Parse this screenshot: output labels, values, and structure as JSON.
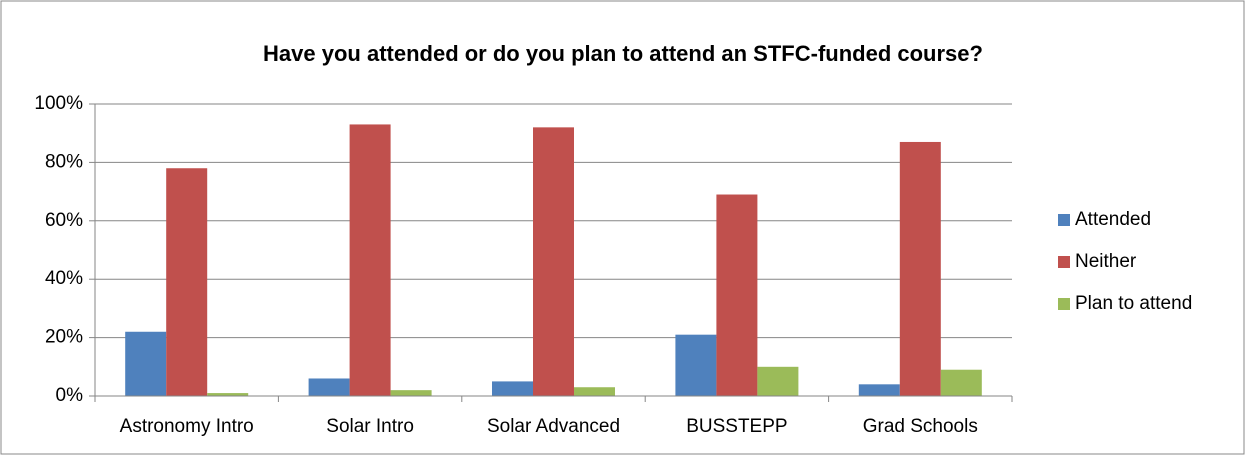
{
  "chart_data": {
    "type": "bar",
    "title": "Have you attended or do you plan to attend an STFC-funded course?",
    "categories": [
      "Astronomy Intro",
      "Solar Intro",
      "Solar Advanced",
      "BUSSTEPP",
      "Grad Schools"
    ],
    "series": [
      {
        "name": "Attended",
        "color": "#4f81bd",
        "values": [
          22,
          6,
          5,
          21,
          4
        ]
      },
      {
        "name": "Neither",
        "color": "#c0504d",
        "values": [
          78,
          93,
          92,
          69,
          87
        ]
      },
      {
        "name": "Plan to attend",
        "color": "#9bbb59",
        "values": [
          1,
          2,
          3,
          10,
          9
        ]
      }
    ],
    "ylim": [
      0,
      100
    ],
    "yticks": [
      {
        "value": 0,
        "label": "0%"
      },
      {
        "value": 20,
        "label": "20%"
      },
      {
        "value": 40,
        "label": "40%"
      },
      {
        "value": 60,
        "label": "60%"
      },
      {
        "value": 80,
        "label": "80%"
      },
      {
        "value": 100,
        "label": "100%"
      }
    ],
    "grid": true,
    "legend": "right"
  }
}
